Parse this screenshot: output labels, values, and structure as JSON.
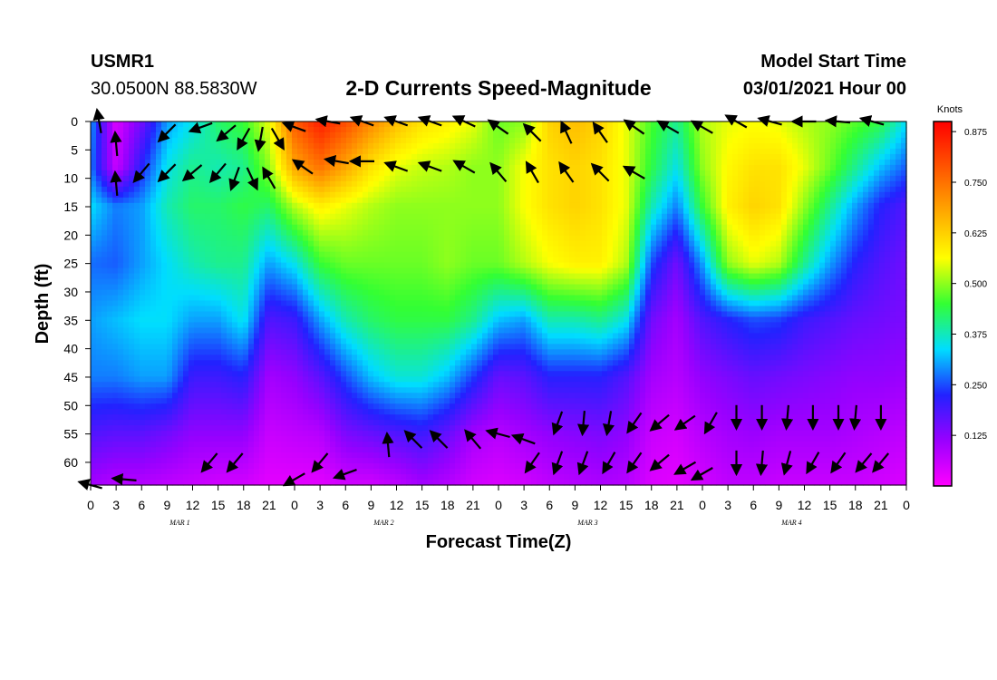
{
  "header": {
    "station": "USMR1",
    "location": "30.0500N 88.5830W",
    "title": "2-D Currents Speed-Magnitude",
    "model_start_label": "Model Start Time",
    "model_start_value": "03/01/2021 Hour 00"
  },
  "chart_data": {
    "type": "heatmap",
    "title": "2-D Currents Speed-Magnitude",
    "xlabel": "Forecast Time(Z)",
    "ylabel": "Depth (ft)",
    "x_tick_labels": [
      "0",
      "3",
      "6",
      "9",
      "12",
      "15",
      "18",
      "21",
      "0",
      "3",
      "6",
      "9",
      "12",
      "15",
      "18",
      "21",
      "0",
      "3",
      "6",
      "9",
      "12",
      "15",
      "18",
      "21",
      "0",
      "3",
      "6",
      "9",
      "12",
      "15",
      "18",
      "21",
      "0"
    ],
    "day_labels": [
      "MAR  1",
      "MAR  2",
      "MAR  3",
      "MAR  4"
    ],
    "x_range_hours": [
      0,
      96
    ],
    "y_ticks": [
      0,
      5,
      10,
      15,
      20,
      25,
      30,
      35,
      40,
      45,
      50,
      55,
      60
    ],
    "y_range_ft": [
      0,
      64
    ],
    "colorbar": {
      "unit_label": "Knots",
      "ticks": [
        "0.875",
        "0.750",
        "0.625",
        "0.500",
        "0.375",
        "0.250",
        "0.125"
      ],
      "tick_values": [
        0.875,
        0.75,
        0.625,
        0.5,
        0.375,
        0.25,
        0.125
      ],
      "range": [
        0,
        0.9
      ],
      "colors": [
        "#ff00ff",
        "#9900ff",
        "#2222ff",
        "#00ddff",
        "#33ff33",
        "#ffff00",
        "#ffaa00",
        "#ff5500",
        "#ff0000"
      ]
    },
    "profile_depths_ft": [
      0,
      8,
      15,
      25,
      35,
      45,
      55,
      64
    ],
    "speed_profiles": [
      {
        "hour": 0,
        "speeds": [
          0.3,
          0.28,
          0.34,
          0.27,
          0.3,
          0.28,
          0.18,
          0.1
        ]
      },
      {
        "hour": 3,
        "speeds": [
          0.04,
          0.06,
          0.28,
          0.26,
          0.32,
          0.28,
          0.17,
          0.08
        ]
      },
      {
        "hour": 6,
        "speeds": [
          0.15,
          0.22,
          0.3,
          0.3,
          0.34,
          0.3,
          0.17,
          0.08
        ]
      },
      {
        "hour": 9,
        "speeds": [
          0.3,
          0.35,
          0.38,
          0.34,
          0.34,
          0.3,
          0.15,
          0.07
        ]
      },
      {
        "hour": 12,
        "speeds": [
          0.35,
          0.4,
          0.42,
          0.38,
          0.3,
          0.2,
          0.12,
          0.06
        ]
      },
      {
        "hour": 15,
        "speeds": [
          0.42,
          0.38,
          0.42,
          0.4,
          0.3,
          0.2,
          0.12,
          0.05
        ]
      },
      {
        "hour": 18,
        "speeds": [
          0.45,
          0.4,
          0.44,
          0.4,
          0.35,
          0.22,
          0.12,
          0.05
        ]
      },
      {
        "hour": 21,
        "speeds": [
          0.55,
          0.5,
          0.42,
          0.3,
          0.18,
          0.1,
          0.06,
          0.03
        ]
      },
      {
        "hour": 24,
        "speeds": [
          0.78,
          0.68,
          0.52,
          0.35,
          0.2,
          0.12,
          0.07,
          0.03
        ]
      },
      {
        "hour": 27,
        "speeds": [
          0.86,
          0.75,
          0.58,
          0.45,
          0.3,
          0.17,
          0.08,
          0.03
        ]
      },
      {
        "hour": 30,
        "speeds": [
          0.8,
          0.68,
          0.55,
          0.48,
          0.38,
          0.25,
          0.14,
          0.05
        ]
      },
      {
        "hour": 33,
        "speeds": [
          0.72,
          0.6,
          0.52,
          0.48,
          0.42,
          0.32,
          0.16,
          0.05
        ]
      },
      {
        "hour": 36,
        "speeds": [
          0.65,
          0.55,
          0.5,
          0.48,
          0.44,
          0.36,
          0.18,
          0.07
        ]
      },
      {
        "hour": 39,
        "speeds": [
          0.6,
          0.53,
          0.5,
          0.48,
          0.44,
          0.36,
          0.2,
          0.1
        ]
      },
      {
        "hour": 42,
        "speeds": [
          0.58,
          0.52,
          0.5,
          0.5,
          0.44,
          0.32,
          0.16,
          0.08
        ]
      },
      {
        "hour": 45,
        "speeds": [
          0.55,
          0.5,
          0.5,
          0.48,
          0.4,
          0.24,
          0.1,
          0.05
        ]
      },
      {
        "hour": 48,
        "speeds": [
          0.48,
          0.5,
          0.5,
          0.48,
          0.32,
          0.16,
          0.08,
          0.04
        ]
      },
      {
        "hour": 51,
        "speeds": [
          0.5,
          0.56,
          0.56,
          0.52,
          0.3,
          0.17,
          0.1,
          0.05
        ]
      },
      {
        "hour": 54,
        "speeds": [
          0.62,
          0.6,
          0.6,
          0.56,
          0.38,
          0.22,
          0.12,
          0.07
        ]
      },
      {
        "hour": 57,
        "speeds": [
          0.65,
          0.62,
          0.62,
          0.58,
          0.38,
          0.22,
          0.13,
          0.08
        ]
      },
      {
        "hour": 60,
        "speeds": [
          0.62,
          0.6,
          0.6,
          0.58,
          0.4,
          0.22,
          0.14,
          0.09
        ]
      },
      {
        "hour": 63,
        "speeds": [
          0.55,
          0.55,
          0.55,
          0.52,
          0.35,
          0.18,
          0.12,
          0.08
        ]
      },
      {
        "hour": 66,
        "speeds": [
          0.46,
          0.44,
          0.38,
          0.25,
          0.15,
          0.1,
          0.06,
          0.04
        ]
      },
      {
        "hour": 69,
        "speeds": [
          0.4,
          0.35,
          0.28,
          0.15,
          0.1,
          0.08,
          0.05,
          0.03
        ]
      },
      {
        "hour": 72,
        "speeds": [
          0.52,
          0.5,
          0.45,
          0.3,
          0.18,
          0.12,
          0.08,
          0.05
        ]
      },
      {
        "hour": 75,
        "speeds": [
          0.55,
          0.57,
          0.58,
          0.5,
          0.22,
          0.14,
          0.1,
          0.07
        ]
      },
      {
        "hour": 78,
        "speeds": [
          0.56,
          0.6,
          0.62,
          0.55,
          0.25,
          0.16,
          0.11,
          0.07
        ]
      },
      {
        "hour": 81,
        "speeds": [
          0.55,
          0.6,
          0.6,
          0.52,
          0.24,
          0.15,
          0.1,
          0.06
        ]
      },
      {
        "hour": 84,
        "speeds": [
          0.52,
          0.55,
          0.5,
          0.4,
          0.2,
          0.14,
          0.1,
          0.06
        ]
      },
      {
        "hour": 87,
        "speeds": [
          0.5,
          0.48,
          0.4,
          0.3,
          0.18,
          0.13,
          0.1,
          0.06
        ]
      },
      {
        "hour": 90,
        "speeds": [
          0.47,
          0.4,
          0.3,
          0.22,
          0.16,
          0.12,
          0.09,
          0.06
        ]
      },
      {
        "hour": 93,
        "speeds": [
          0.44,
          0.32,
          0.22,
          0.18,
          0.15,
          0.12,
          0.08,
          0.05
        ]
      },
      {
        "hour": 96,
        "speeds": [
          0.34,
          0.26,
          0.18,
          0.15,
          0.14,
          0.11,
          0.07,
          0.04
        ]
      }
    ],
    "vectors": [
      {
        "hour": 1,
        "depth": 0,
        "angle": 260
      },
      {
        "hour": 3,
        "depth": 4,
        "angle": 265
      },
      {
        "hour": 9,
        "depth": 2,
        "angle": 135
      },
      {
        "hour": 13,
        "depth": 1,
        "angle": 160
      },
      {
        "hour": 16,
        "depth": 2,
        "angle": 140
      },
      {
        "hour": 18,
        "depth": 3,
        "angle": 120
      },
      {
        "hour": 20,
        "depth": 3,
        "angle": 100
      },
      {
        "hour": 22,
        "depth": 3,
        "angle": 60
      },
      {
        "hour": 24,
        "depth": 1,
        "angle": 200
      },
      {
        "hour": 28,
        "depth": 0,
        "angle": 190
      },
      {
        "hour": 32,
        "depth": 0,
        "angle": 200
      },
      {
        "hour": 36,
        "depth": 0,
        "angle": 200
      },
      {
        "hour": 40,
        "depth": 0,
        "angle": 200
      },
      {
        "hour": 44,
        "depth": 0,
        "angle": 205
      },
      {
        "hour": 48,
        "depth": 1,
        "angle": 215
      },
      {
        "hour": 52,
        "depth": 2,
        "angle": 225
      },
      {
        "hour": 56,
        "depth": 2,
        "angle": 245
      },
      {
        "hour": 60,
        "depth": 2,
        "angle": 235
      },
      {
        "hour": 64,
        "depth": 1,
        "angle": 215
      },
      {
        "hour": 68,
        "depth": 1,
        "angle": 210
      },
      {
        "hour": 72,
        "depth": 1,
        "angle": 210
      },
      {
        "hour": 76,
        "depth": 0,
        "angle": 210
      },
      {
        "hour": 80,
        "depth": 0,
        "angle": 195
      },
      {
        "hour": 84,
        "depth": 0,
        "angle": 180
      },
      {
        "hour": 88,
        "depth": 0,
        "angle": 185
      },
      {
        "hour": 92,
        "depth": 0,
        "angle": 195
      },
      {
        "hour": 3,
        "depth": 11,
        "angle": 265
      },
      {
        "hour": 6,
        "depth": 9,
        "angle": 130
      },
      {
        "hour": 9,
        "depth": 9,
        "angle": 135
      },
      {
        "hour": 12,
        "depth": 9,
        "angle": 140
      },
      {
        "hour": 15,
        "depth": 9,
        "angle": 130
      },
      {
        "hour": 17,
        "depth": 10,
        "angle": 110
      },
      {
        "hour": 19,
        "depth": 10,
        "angle": 65
      },
      {
        "hour": 21,
        "depth": 10,
        "angle": 240
      },
      {
        "hour": 25,
        "depth": 8,
        "angle": 215
      },
      {
        "hour": 29,
        "depth": 7,
        "angle": 190
      },
      {
        "hour": 32,
        "depth": 7,
        "angle": 180
      },
      {
        "hour": 36,
        "depth": 8,
        "angle": 200
      },
      {
        "hour": 40,
        "depth": 8,
        "angle": 200
      },
      {
        "hour": 44,
        "depth": 8,
        "angle": 210
      },
      {
        "hour": 48,
        "depth": 9,
        "angle": 230
      },
      {
        "hour": 52,
        "depth": 9,
        "angle": 240
      },
      {
        "hour": 56,
        "depth": 9,
        "angle": 235
      },
      {
        "hour": 60,
        "depth": 9,
        "angle": 225
      },
      {
        "hour": 64,
        "depth": 9,
        "angle": 210
      },
      {
        "hour": 0,
        "depth": 64,
        "angle": 195
      },
      {
        "hour": 4,
        "depth": 63,
        "angle": 185
      },
      {
        "hour": 14,
        "depth": 60,
        "angle": 130
      },
      {
        "hour": 17,
        "depth": 60,
        "angle": 130
      },
      {
        "hour": 24,
        "depth": 63,
        "angle": 150
      },
      {
        "hour": 27,
        "depth": 60,
        "angle": 130
      },
      {
        "hour": 30,
        "depth": 62,
        "angle": 160
      },
      {
        "hour": 35,
        "depth": 57,
        "angle": 265
      },
      {
        "hour": 38,
        "depth": 56,
        "angle": 225
      },
      {
        "hour": 41,
        "depth": 56,
        "angle": 225
      },
      {
        "hour": 45,
        "depth": 56,
        "angle": 230
      },
      {
        "hour": 48,
        "depth": 55,
        "angle": 195
      },
      {
        "hour": 51,
        "depth": 56,
        "angle": 200
      },
      {
        "hour": 52,
        "depth": 60,
        "angle": 125
      },
      {
        "hour": 55,
        "depth": 60,
        "angle": 110
      },
      {
        "hour": 58,
        "depth": 60,
        "angle": 110
      },
      {
        "hour": 61,
        "depth": 60,
        "angle": 120
      },
      {
        "hour": 64,
        "depth": 60,
        "angle": 125
      },
      {
        "hour": 67,
        "depth": 60,
        "angle": 140
      },
      {
        "hour": 70,
        "depth": 61,
        "angle": 150
      },
      {
        "hour": 72,
        "depth": 62,
        "angle": 150
      },
      {
        "hour": 76,
        "depth": 60,
        "angle": 90
      },
      {
        "hour": 79,
        "depth": 60,
        "angle": 95
      },
      {
        "hour": 82,
        "depth": 60,
        "angle": 105
      },
      {
        "hour": 85,
        "depth": 60,
        "angle": 120
      },
      {
        "hour": 88,
        "depth": 60,
        "angle": 125
      },
      {
        "hour": 91,
        "depth": 60,
        "angle": 130
      },
      {
        "hour": 93,
        "depth": 60,
        "angle": 130
      },
      {
        "hour": 55,
        "depth": 53,
        "angle": 110
      },
      {
        "hour": 58,
        "depth": 53,
        "angle": 95
      },
      {
        "hour": 61,
        "depth": 53,
        "angle": 100
      },
      {
        "hour": 64,
        "depth": 53,
        "angle": 125
      },
      {
        "hour": 67,
        "depth": 53,
        "angle": 140
      },
      {
        "hour": 70,
        "depth": 53,
        "angle": 145
      },
      {
        "hour": 73,
        "depth": 53,
        "angle": 120
      },
      {
        "hour": 76,
        "depth": 52,
        "angle": 90
      },
      {
        "hour": 79,
        "depth": 52,
        "angle": 90
      },
      {
        "hour": 82,
        "depth": 52,
        "angle": 95
      },
      {
        "hour": 85,
        "depth": 52,
        "angle": 90
      },
      {
        "hour": 88,
        "depth": 52,
        "angle": 90
      },
      {
        "hour": 90,
        "depth": 52,
        "angle": 95
      },
      {
        "hour": 93,
        "depth": 52,
        "angle": 90
      }
    ]
  }
}
